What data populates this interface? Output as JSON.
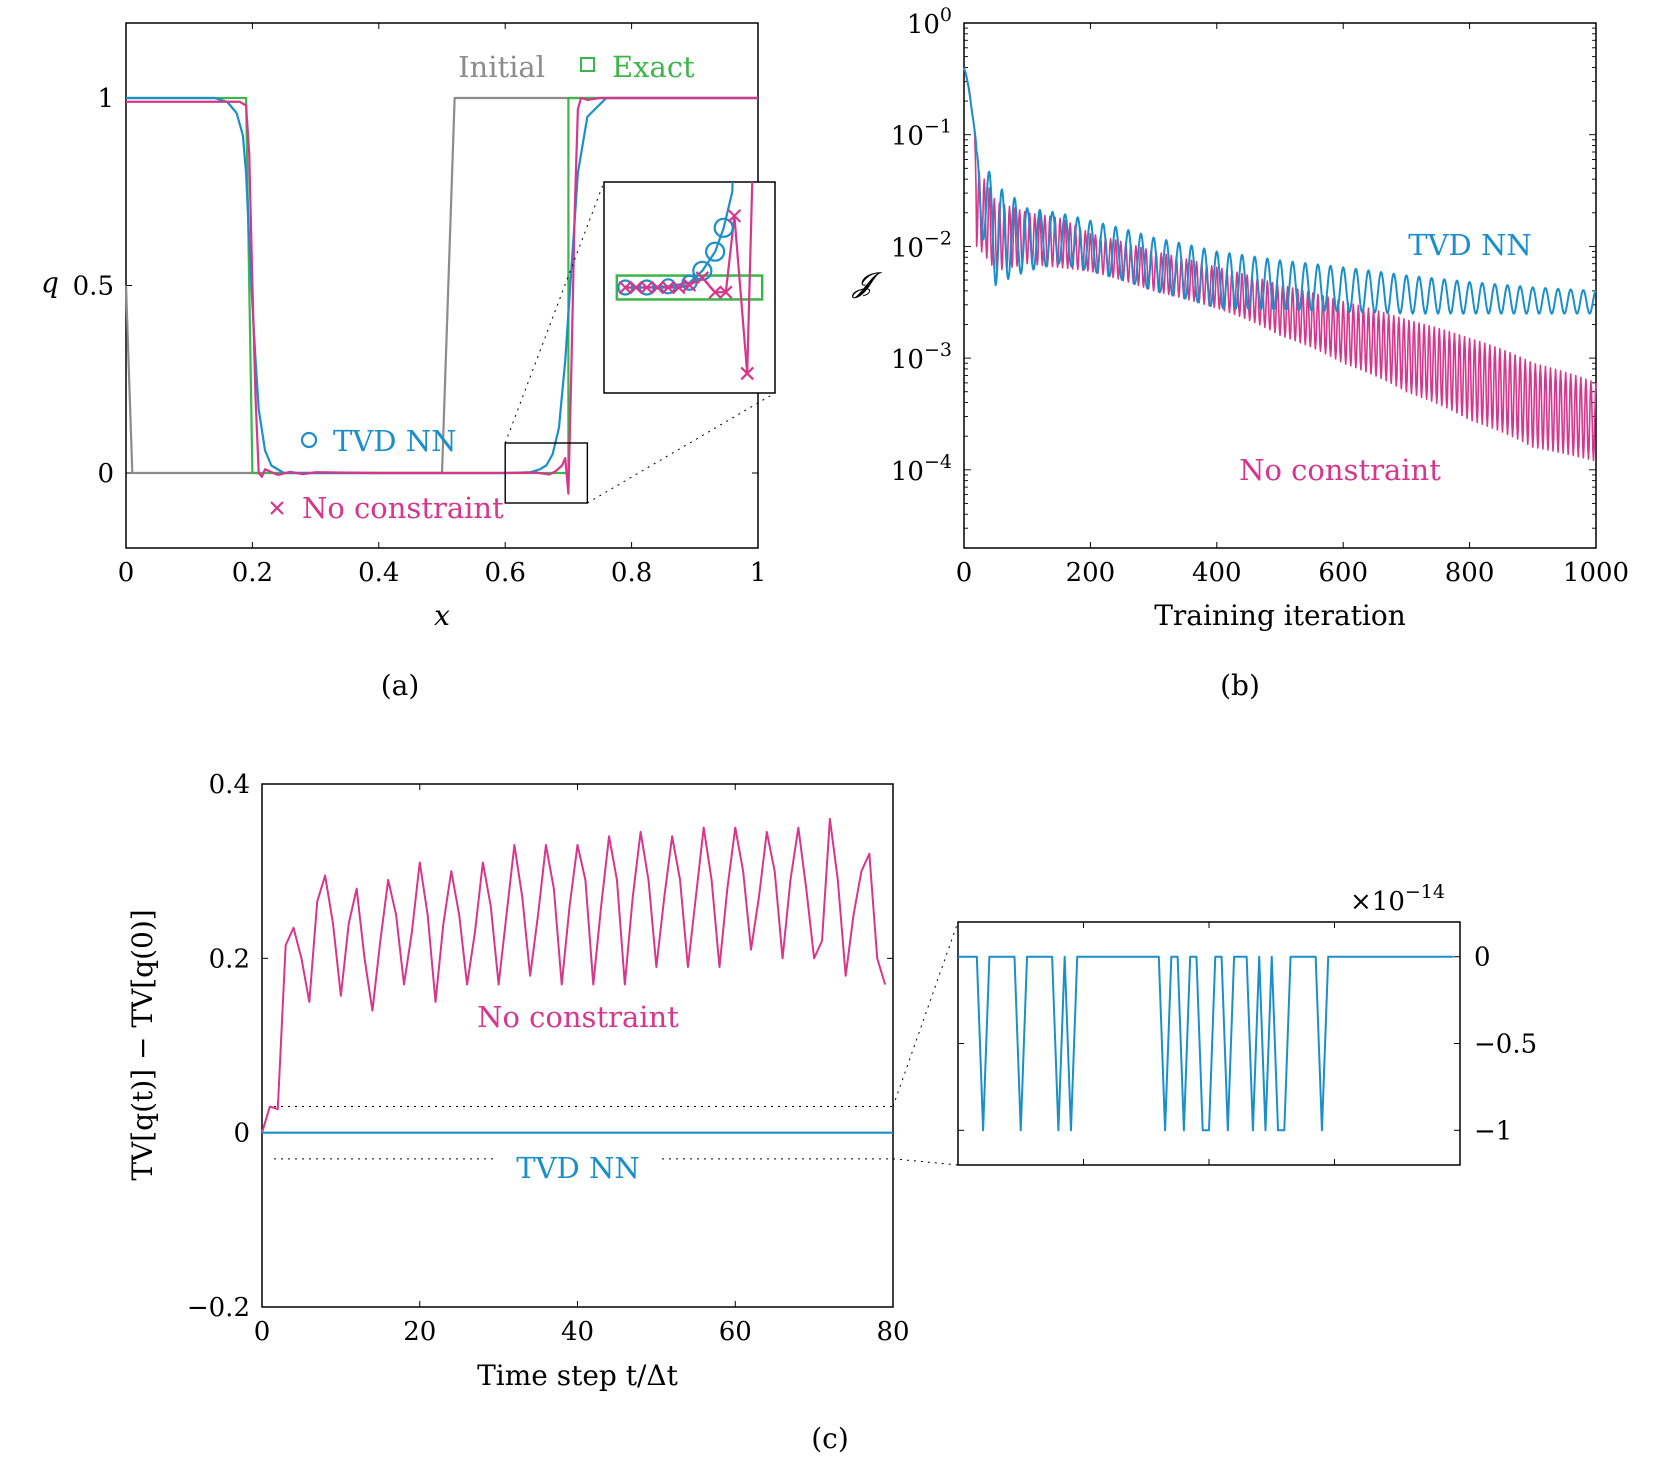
{
  "colors": {
    "tvd": "#1a8fc9",
    "noc": "#d6368c",
    "exact": "#3cb54a",
    "initial": "#8c8c8c",
    "frame": "#000000"
  },
  "chart_data": [
    {
      "id": "a",
      "type": "line",
      "caption": "(a)",
      "xlabel": "x",
      "ylabel": "q",
      "xlim": [
        0,
        1
      ],
      "ylim": [
        -0.2,
        1.2
      ],
      "x_ticks": [
        0,
        0.2,
        0.4,
        0.6,
        0.8,
        1
      ],
      "x_tick_labels": [
        "0",
        "0.2",
        "0.4",
        "0.6",
        "0.8",
        "1"
      ],
      "y_ticks": [
        0,
        0.5,
        1
      ],
      "y_tick_labels": [
        "0",
        "0.5",
        "1"
      ],
      "grid": false,
      "series": [
        {
          "name": "Initial",
          "key": "initial",
          "x": [
            0,
            0.01,
            0.5,
            0.52,
            1
          ],
          "y": [
            0.5,
            0,
            0,
            1,
            1
          ]
        },
        {
          "name": "Exact",
          "key": "exact",
          "x": [
            0,
            0.19,
            0.2,
            0.7,
            0.7,
            1
          ],
          "y": [
            1,
            1,
            0,
            0,
            1,
            1
          ]
        },
        {
          "name": "TVD NN",
          "key": "tvd",
          "x": [
            0,
            0.14,
            0.16,
            0.175,
            0.185,
            0.19,
            0.195,
            0.2,
            0.205,
            0.21,
            0.22,
            0.23,
            0.25,
            0.3,
            0.6,
            0.64,
            0.655,
            0.665,
            0.675,
            0.685,
            0.695,
            0.705,
            0.715,
            0.73,
            0.76,
            1
          ],
          "y": [
            1,
            1,
            0.99,
            0.96,
            0.9,
            0.8,
            0.62,
            0.45,
            0.3,
            0.17,
            0.06,
            0.02,
            0.0,
            0,
            0,
            0.002,
            0.01,
            0.02,
            0.05,
            0.12,
            0.3,
            0.55,
            0.8,
            0.95,
            1,
            1
          ]
        },
        {
          "name": "No constraint",
          "key": "noc",
          "x": [
            0,
            0.18,
            0.19,
            0.195,
            0.2,
            0.205,
            0.21,
            0.215,
            0.22,
            0.24,
            0.26,
            0.28,
            0.3,
            0.35,
            0.4,
            0.5,
            0.6,
            0.65,
            0.67,
            0.68,
            0.69,
            0.695,
            0.7,
            0.705,
            0.71,
            0.715,
            0.72,
            0.73,
            0.75,
            1
          ],
          "y": [
            0.99,
            0.99,
            0.98,
            0.85,
            0.5,
            0.2,
            0.0,
            -0.01,
            0.01,
            -0.005,
            0.003,
            -0.003,
            0.002,
            0.001,
            0,
            0,
            0,
            0.001,
            -0.004,
            0.005,
            0.02,
            0.04,
            -0.055,
            0.3,
            0.7,
            0.97,
            1.0,
            0.995,
            1.0,
            1
          ]
        }
      ],
      "legend_entries": [
        {
          "label": "Initial",
          "key": "initial",
          "marker": "line"
        },
        {
          "label": "Exact",
          "key": "exact",
          "marker": "square"
        },
        {
          "label": "TVD NN",
          "key": "tvd",
          "marker": "circle"
        },
        {
          "label": "No constraint",
          "key": "noc",
          "marker": "cross"
        }
      ],
      "inset": {
        "zoom_xlim": [
          0.6,
          0.73
        ],
        "zoom_ylim": [
          -0.08,
          0.08
        ],
        "tvd_markers": [
          [
            0.6,
            0.0
          ],
          [
            0.62,
            0.0
          ],
          [
            0.64,
            0.001
          ],
          [
            0.66,
            0.004
          ],
          [
            0.672,
            0.014
          ],
          [
            0.684,
            0.03
          ],
          [
            0.692,
            0.05
          ]
        ],
        "noc_markers": [
          [
            0.6,
            0.0
          ],
          [
            0.61,
            0.0
          ],
          [
            0.62,
            0.0
          ],
          [
            0.63,
            0.0
          ],
          [
            0.64,
            0.0
          ],
          [
            0.65,
            0.0
          ],
          [
            0.66,
            0.002
          ],
          [
            0.672,
            0.008
          ],
          [
            0.684,
            -0.004
          ],
          [
            0.694,
            -0.004
          ],
          [
            0.702,
            0.06
          ],
          [
            0.714,
            -0.072
          ]
        ]
      }
    },
    {
      "id": "b",
      "type": "line",
      "caption": "(b)",
      "xlabel": "Training iteration",
      "ylabel": "𝓙",
      "xlim": [
        0,
        1000
      ],
      "ylim_log10": [
        -4.7,
        0
      ],
      "yscale": "log",
      "x_ticks": [
        0,
        200,
        400,
        600,
        800,
        1000
      ],
      "x_tick_labels": [
        "0",
        "200",
        "400",
        "600",
        "800",
        "1000"
      ],
      "y_tick_exponents": [
        0,
        -1,
        -2,
        -3,
        -4
      ],
      "y_tick_base": "10",
      "grid": false,
      "series": [
        {
          "name": "TVD NN",
          "key": "tvd",
          "envelope": {
            "x": [
              0,
              20,
              50,
              100,
              150,
              200,
              300,
              400,
              500,
              600,
              700,
              800,
              900,
              1000
            ],
            "hi": [
              0.4,
              0.07,
              0.035,
              0.022,
              0.02,
              0.017,
              0.012,
              0.009,
              0.0075,
              0.0065,
              0.0055,
              0.0048,
              0.0043,
              0.004
            ],
            "lo": [
              0.4,
              0.015,
              0.0045,
              0.006,
              0.007,
              0.006,
              0.004,
              0.0028,
              0.0027,
              0.0026,
              0.0025,
              0.0025,
              0.0025,
              0.0025
            ]
          },
          "period": 20
        },
        {
          "name": "No constraint",
          "key": "noc",
          "envelope": {
            "x": [
              0,
              20,
              50,
              100,
              150,
              200,
              300,
              400,
              500,
              600,
              700,
              800,
              900,
              1000
            ],
            "hi": [
              0.4,
              0.05,
              0.025,
              0.02,
              0.018,
              0.013,
              0.009,
              0.0065,
              0.0045,
              0.0032,
              0.0022,
              0.0015,
              0.0009,
              0.0006
            ],
            "lo": [
              0.4,
              0.01,
              0.006,
              0.007,
              0.0065,
              0.006,
              0.004,
              0.0028,
              0.0016,
              0.0009,
              0.0005,
              0.00028,
              0.00016,
              0.00012
            ]
          },
          "period": 8
        }
      ],
      "labels": [
        {
          "text": "TVD NN",
          "key": "tvd"
        },
        {
          "text": "No constraint",
          "key": "noc"
        }
      ]
    },
    {
      "id": "c",
      "type": "line",
      "caption": "(c)",
      "xlabel": "Time step t/Δt",
      "ylabel": "TV[q(t)] − TV[q(0)]",
      "xlim": [
        0,
        80
      ],
      "ylim": [
        -0.2,
        0.4
      ],
      "x_ticks": [
        0,
        20,
        40,
        60,
        80
      ],
      "x_tick_labels": [
        "0",
        "20",
        "40",
        "60",
        "80"
      ],
      "y_ticks": [
        -0.2,
        0,
        0.2,
        0.4
      ],
      "y_tick_labels": [
        "−0.2",
        "0",
        "0.2",
        "0.4"
      ],
      "grid": false,
      "series": [
        {
          "name": "No constraint",
          "key": "noc",
          "x": [
            0,
            1,
            2,
            3,
            4,
            5,
            6,
            7,
            8,
            9,
            10,
            11,
            12,
            13,
            14,
            15,
            16,
            17,
            18,
            19,
            20,
            21,
            22,
            23,
            24,
            25,
            26,
            27,
            28,
            29,
            30,
            31,
            32,
            33,
            34,
            35,
            36,
            37,
            38,
            39,
            40,
            41,
            42,
            43,
            44,
            45,
            46,
            47,
            48,
            49,
            50,
            51,
            52,
            53,
            54,
            55,
            56,
            57,
            58,
            59,
            60,
            61,
            62,
            63,
            64,
            65,
            66,
            67,
            68,
            69,
            70,
            71,
            72,
            73,
            74,
            75,
            76,
            77,
            78,
            79
          ],
          "y": [
            0,
            0.03,
            0.027,
            0.215,
            0.235,
            0.2,
            0.15,
            0.265,
            0.295,
            0.24,
            0.157,
            0.24,
            0.28,
            0.2,
            0.14,
            0.22,
            0.29,
            0.25,
            0.17,
            0.23,
            0.31,
            0.25,
            0.15,
            0.24,
            0.3,
            0.25,
            0.17,
            0.23,
            0.31,
            0.26,
            0.17,
            0.25,
            0.33,
            0.27,
            0.18,
            0.25,
            0.33,
            0.28,
            0.17,
            0.26,
            0.33,
            0.29,
            0.17,
            0.26,
            0.34,
            0.29,
            0.17,
            0.27,
            0.345,
            0.29,
            0.19,
            0.27,
            0.34,
            0.29,
            0.19,
            0.27,
            0.35,
            0.29,
            0.19,
            0.28,
            0.35,
            0.3,
            0.21,
            0.27,
            0.345,
            0.3,
            0.2,
            0.29,
            0.35,
            0.28,
            0.2,
            0.22,
            0.36,
            0.29,
            0.18,
            0.25,
            0.3,
            0.32,
            0.2,
            0.17
          ]
        },
        {
          "name": "TVD NN",
          "key": "tvd",
          "x": [
            0,
            80
          ],
          "y": [
            0,
            0
          ]
        }
      ],
      "labels": [
        {
          "text": "No constraint",
          "key": "noc"
        },
        {
          "text": "TVD NN",
          "key": "tvd"
        }
      ],
      "inset": {
        "scale_label_base": "×10",
        "scale_label_exp": "−14",
        "ylim": [
          -1.2,
          0.2
        ],
        "y_ticks": [
          0,
          -0.5,
          -1
        ],
        "y_tick_labels": [
          "0",
          "−0.5",
          "−1"
        ],
        "x": [
          0,
          1,
          2,
          3,
          4,
          5,
          6,
          7,
          8,
          9,
          10,
          11,
          12,
          13,
          14,
          15,
          16,
          17,
          18,
          19,
          20,
          21,
          22,
          23,
          24,
          25,
          26,
          27,
          28,
          29,
          30,
          31,
          32,
          33,
          34,
          35,
          36,
          37,
          38,
          39,
          40,
          41,
          42,
          43,
          44,
          45,
          46,
          47,
          48,
          49,
          50,
          51,
          52,
          53,
          54,
          55,
          56,
          57,
          58,
          59,
          60,
          61,
          62,
          63,
          64,
          65,
          66,
          67,
          68,
          69,
          70,
          71,
          72,
          73,
          74,
          75,
          76,
          77,
          78,
          79
        ],
        "y": [
          0,
          0,
          0,
          0,
          -1,
          0,
          0,
          0,
          0,
          0,
          -1,
          0,
          0,
          0,
          0,
          0,
          -1,
          0,
          -1,
          0,
          0,
          0,
          0,
          0,
          0,
          0,
          0,
          0,
          0,
          0,
          0,
          0,
          0,
          -1,
          0,
          0,
          -1,
          0,
          0,
          -1,
          -1,
          0,
          0,
          -1,
          0,
          0,
          0,
          -1,
          0,
          -1,
          0,
          -1,
          -1,
          0,
          0,
          0,
          0,
          0,
          -1,
          0,
          0,
          0,
          0,
          0,
          0,
          0,
          0,
          0,
          0,
          0,
          0,
          0,
          0,
          0,
          0,
          0,
          0,
          0,
          0,
          0
        ]
      }
    }
  ]
}
